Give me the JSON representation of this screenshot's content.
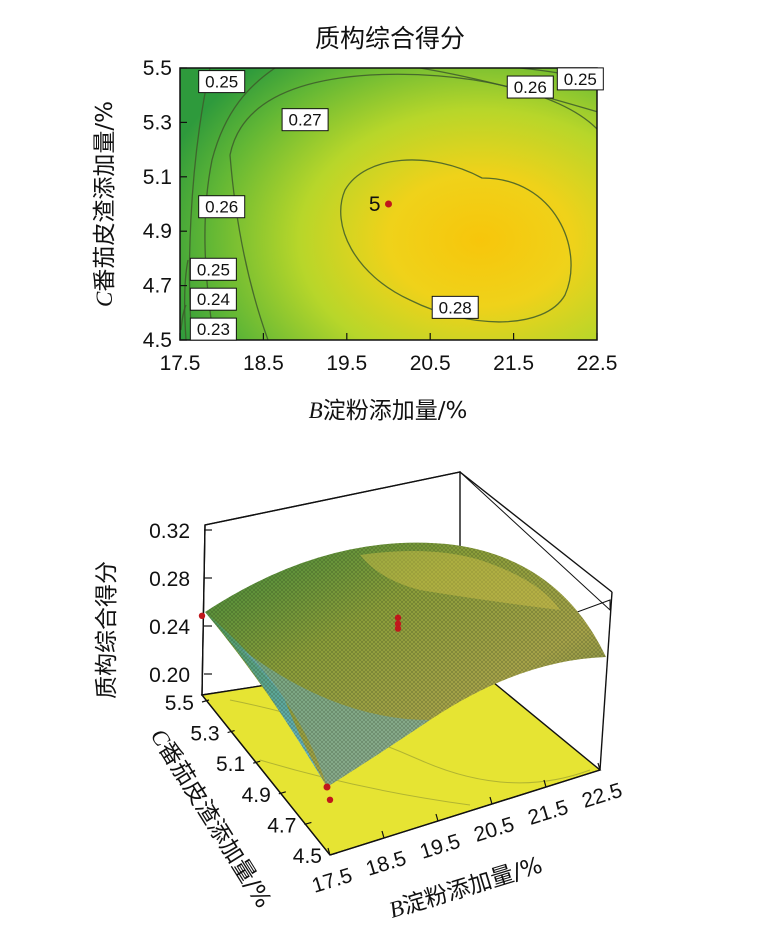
{
  "chart_data": [
    {
      "type": "contour",
      "title": "质构综合得分",
      "xlabel_var": "B",
      "xlabel": "淀粉添加量/%",
      "ylabel_var": "C",
      "ylabel": "番茄皮渣添加量/%",
      "xlim": [
        17.5,
        22.5
      ],
      "ylim": [
        4.5,
        5.5
      ],
      "x_ticks": [
        "17.5",
        "18.5",
        "19.5",
        "20.5",
        "21.5",
        "22.5"
      ],
      "y_ticks": [
        "4.5",
        "4.7",
        "4.9",
        "5.1",
        "5.3",
        "5.5"
      ],
      "contour_levels": [
        0.23,
        0.24,
        0.25,
        0.26,
        0.27,
        0.28
      ],
      "contour_labels": [
        {
          "text": "0.25",
          "x": 18.0,
          "y": 5.45
        },
        {
          "text": "0.27",
          "x": 19.0,
          "y": 5.31
        },
        {
          "text": "0.26",
          "x": 21.7,
          "y": 5.43
        },
        {
          "text": "0.25",
          "x": 22.3,
          "y": 5.46
        },
        {
          "text": "0.26",
          "x": 18.0,
          "y": 4.99
        },
        {
          "text": "0.25",
          "x": 17.9,
          "y": 4.76
        },
        {
          "text": "0.24",
          "x": 17.9,
          "y": 4.65
        },
        {
          "text": "0.23",
          "x": 17.9,
          "y": 4.54
        },
        {
          "text": "0.28",
          "x": 20.8,
          "y": 4.62
        }
      ],
      "design_point": {
        "label": "5",
        "x": 20.0,
        "y": 5.0
      },
      "colormap": [
        "#2e9e3a",
        "#7cc234",
        "#d6dc22",
        "#f5c20c"
      ]
    },
    {
      "type": "surface3d",
      "zlabel": "质构综合得分",
      "xlabel_var": "B",
      "xlabel": "淀粉添加量/%",
      "ylabel_var": "C",
      "ylabel": "番茄皮渣添加量/%",
      "z_ticks": [
        "0.32",
        "0.28",
        "0.24",
        "0.20"
      ],
      "zlim": [
        0.18,
        0.32
      ],
      "x_ticks": [
        "17.5",
        "18.5",
        "19.5",
        "20.5",
        "21.5",
        "22.5"
      ],
      "y_ticks": [
        "5.5",
        "5.3",
        "5.1",
        "4.9",
        "4.7",
        "4.5"
      ],
      "design_points": [
        {
          "x": 20.0,
          "y": 5.0,
          "z": 0.285
        },
        {
          "x": 20.0,
          "y": 5.0,
          "z": 0.28
        },
        {
          "x": 20.0,
          "y": 5.0,
          "z": 0.276
        },
        {
          "x": 17.5,
          "y": 5.5,
          "z": 0.246
        },
        {
          "x": 17.5,
          "y": 4.5,
          "z": 0.226
        }
      ]
    }
  ]
}
